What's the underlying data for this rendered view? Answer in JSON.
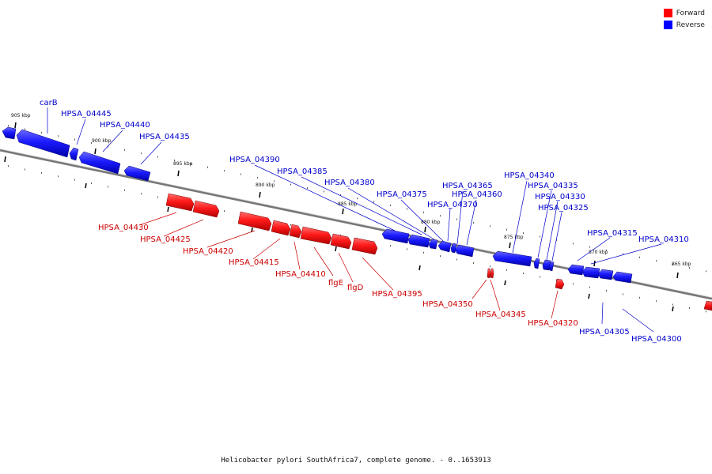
{
  "legend": {
    "forward_label": "Forward",
    "reverse_label": "Reverse",
    "forward_color": "#ff0000",
    "reverse_color": "#0000ff"
  },
  "footer": {
    "caption": "Helicobacter pylori SouthAfrica7, complete genome. - 0..1653913"
  },
  "ruler": {
    "ticks": [
      "905 kbp",
      "900 kbp",
      "895 kbp",
      "890 kbp",
      "885 kbp",
      "880 kbp",
      "875 kbp",
      "870 kbp",
      "865 kbp"
    ]
  },
  "genes": {
    "reverse": [
      "carB",
      "HPSA_04445",
      "HPSA_04440",
      "HPSA_04435",
      "HPSA_04390",
      "HPSA_04385",
      "HPSA_04380",
      "HPSA_04375",
      "HPSA_04365",
      "HPSA_04360",
      "HPSA_04370",
      "HPSA_04340",
      "HPSA_04335",
      "HPSA_04330",
      "HPSA_04325",
      "HPSA_04315",
      "HPSA_04310",
      "HPSA_04305",
      "HPSA_04300"
    ],
    "forward": [
      "HPSA_04430",
      "HPSA_04425",
      "HPSA_04420",
      "HPSA_04415",
      "HPSA_04410",
      "flgE",
      "flgD",
      "HPSA_04395",
      "HPSA_04350",
      "HPSA_04345",
      "HPSA_04320"
    ]
  }
}
